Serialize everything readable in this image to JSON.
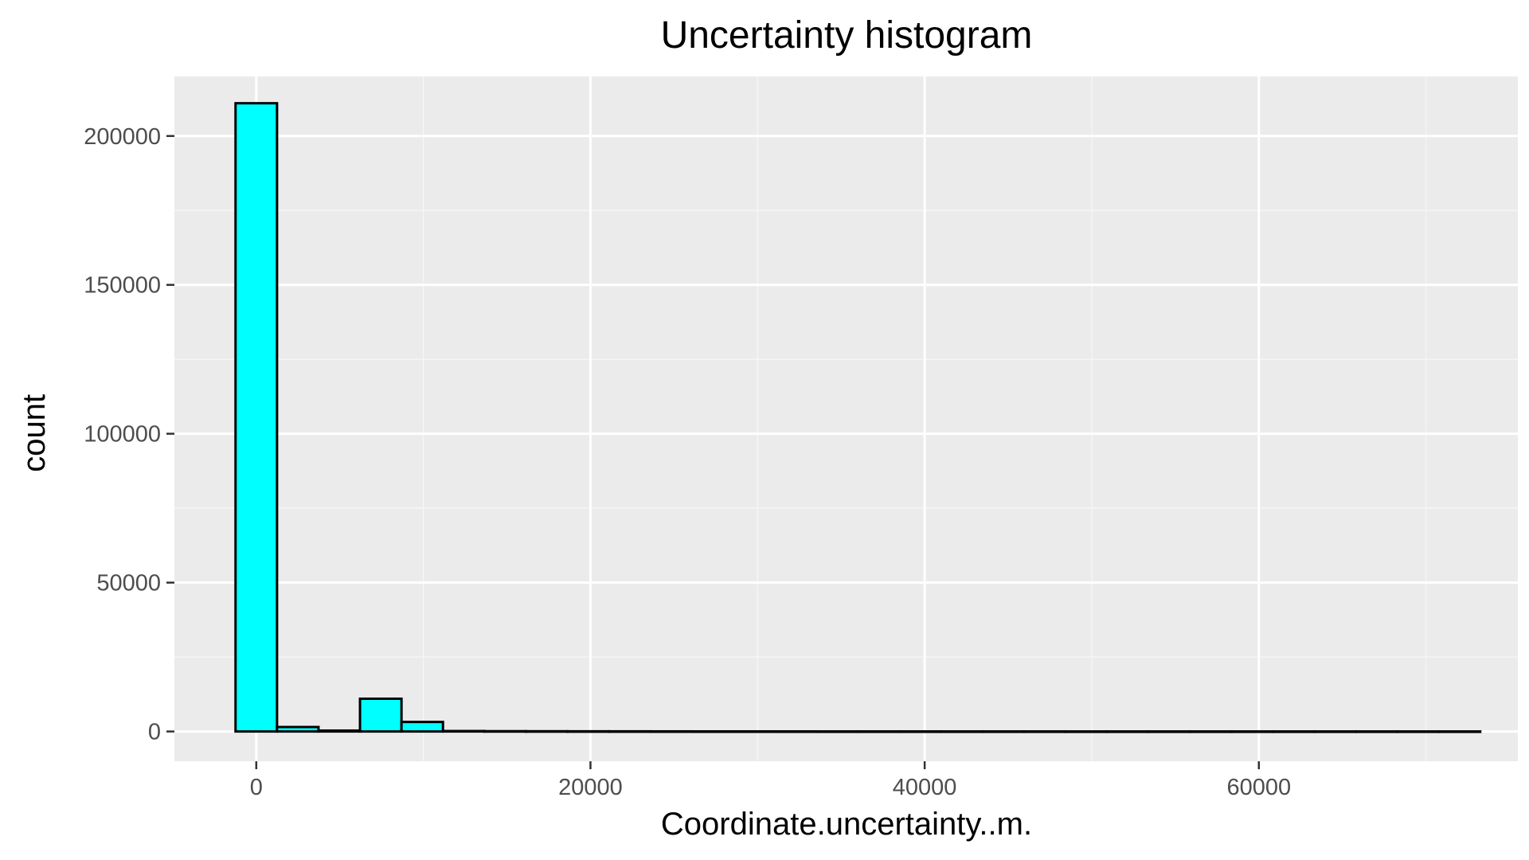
{
  "chart_data": {
    "type": "bar",
    "title": "Uncertainty histogram",
    "xlabel": "Coordinate.uncertainty..m.",
    "ylabel": "count",
    "xlim": [
      -4900,
      75500
    ],
    "ylim": [
      -10000,
      220000
    ],
    "x_ticks": [
      0,
      20000,
      40000,
      60000
    ],
    "x_tick_labels": [
      "0",
      "20000",
      "40000",
      "60000"
    ],
    "y_ticks": [
      0,
      50000,
      100000,
      150000,
      200000
    ],
    "y_tick_labels": [
      "0",
      "50000",
      "100000",
      "150000",
      "200000"
    ],
    "grid": true,
    "legend": "none",
    "bin_width": 2483,
    "bin_start": -1241.5,
    "bins": 30,
    "values": [
      211000,
      1500,
      300,
      11000,
      3200,
      150,
      100,
      80,
      60,
      50,
      40,
      30,
      30,
      25,
      20,
      20,
      20,
      15,
      15,
      15,
      10,
      10,
      10,
      10,
      10,
      10,
      10,
      10,
      10,
      10
    ],
    "colors": {
      "bar_fill": "#00FFFF",
      "bar_stroke": "#000000",
      "panel_bg": "#EBEBEB",
      "grid_major": "#FFFFFF",
      "grid_minor": "#F5F5F5",
      "tick_mark": "#333333",
      "tick_text": "#4D4D4D"
    }
  }
}
